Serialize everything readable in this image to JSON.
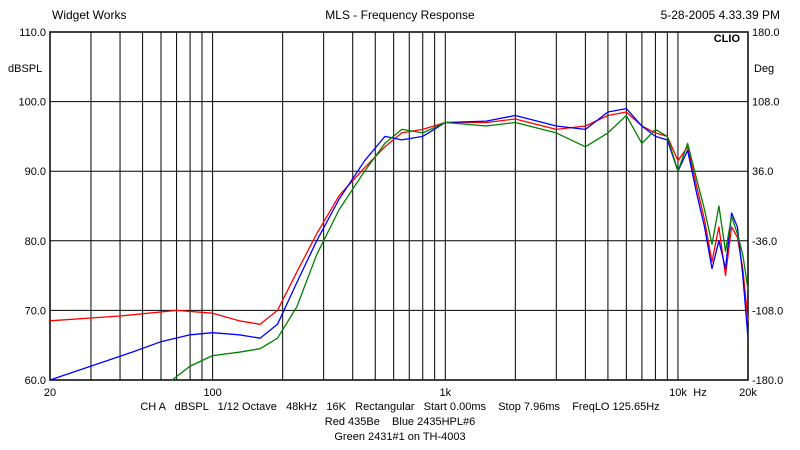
{
  "header": {
    "left": "Widget Works",
    "center": "MLS - Frequency Response",
    "right": "5-28-2005 4.33.39 PM"
  },
  "brand": "CLIO",
  "chart_data": {
    "type": "line",
    "title": "MLS - Frequency Response",
    "x_scale": "log",
    "xlim": [
      20,
      20000
    ],
    "ylim": [
      60,
      110
    ],
    "y2lim": [
      -180,
      180
    ],
    "ylabel": "dBSPL",
    "y2label": "Deg",
    "x_unit_label": "Hz",
    "x_ticks": [
      {
        "value": 20,
        "label": "20"
      },
      {
        "value": 100,
        "label": "100"
      },
      {
        "value": 1000,
        "label": "1k"
      },
      {
        "value": 10000,
        "label": "10k"
      },
      {
        "value": 20000,
        "label": "20k"
      }
    ],
    "y_ticks": [
      {
        "value": 60,
        "label": "60.0"
      },
      {
        "value": 70,
        "label": "70.0"
      },
      {
        "value": 80,
        "label": "80.0"
      },
      {
        "value": 90,
        "label": "90.0"
      },
      {
        "value": 100,
        "label": "100.0"
      },
      {
        "value": 110,
        "label": "110.0"
      }
    ],
    "y2_ticks": [
      {
        "value": -180,
        "label": "-180.0"
      },
      {
        "value": -108,
        "label": "-108.0"
      },
      {
        "value": -36,
        "label": "-36.0"
      },
      {
        "value": 36,
        "label": "36.0"
      },
      {
        "value": 108,
        "label": "108.0"
      },
      {
        "value": 180,
        "label": "180.0"
      }
    ],
    "series": [
      {
        "name": "Red 435Be",
        "color": "#ff0000",
        "x": [
          20,
          40,
          70,
          100,
          130,
          160,
          190,
          230,
          280,
          350,
          450,
          550,
          650,
          800,
          1000,
          1500,
          2000,
          3000,
          4000,
          5000,
          6000,
          7000,
          8000,
          9000,
          10000,
          11000,
          12000,
          13000,
          14000,
          15000,
          16000,
          17000,
          18000,
          19000,
          20000
        ],
        "y": [
          68.5,
          69.2,
          70.0,
          69.6,
          68.5,
          68.0,
          70.0,
          75.5,
          81.0,
          86.5,
          90.5,
          93.5,
          95.5,
          96.0,
          97.0,
          97.0,
          97.5,
          96.0,
          96.5,
          98.0,
          98.5,
          96.5,
          95.5,
          95.0,
          91.5,
          93.5,
          88.0,
          83.0,
          77.0,
          82.0,
          75.0,
          82.0,
          80.5,
          76.0,
          68.5
        ]
      },
      {
        "name": "Blue 2435HPL#6",
        "color": "#0000ff",
        "x": [
          20,
          30,
          45,
          60,
          80,
          100,
          130,
          160,
          190,
          230,
          280,
          350,
          450,
          550,
          650,
          800,
          1000,
          1500,
          2000,
          3000,
          4000,
          5000,
          6000,
          7000,
          8000,
          9000,
          10000,
          11000,
          12000,
          13000,
          14000,
          15000,
          16000,
          17000,
          18000,
          19000,
          20000
        ],
        "y": [
          60.0,
          62.0,
          64.0,
          65.5,
          66.5,
          66.8,
          66.5,
          66.0,
          68.0,
          74.0,
          80.0,
          86.0,
          91.5,
          95.0,
          94.5,
          95.0,
          97.0,
          97.2,
          98.0,
          96.5,
          96.0,
          98.5,
          99.0,
          96.5,
          95.0,
          94.5,
          90.0,
          93.0,
          87.0,
          82.0,
          76.0,
          80.0,
          76.0,
          84.0,
          82.0,
          75.0,
          66.0
        ]
      },
      {
        "name": "Green 2431#1 on TH-4003",
        "color": "#008000",
        "x": [
          67,
          80,
          100,
          130,
          160,
          190,
          230,
          280,
          350,
          450,
          550,
          650,
          800,
          1000,
          1500,
          2000,
          3000,
          4000,
          5000,
          6000,
          7000,
          8000,
          9000,
          10000,
          11000,
          12000,
          13000,
          14000,
          15000,
          16000,
          17000,
          18000,
          19000,
          20000
        ],
        "y": [
          60.0,
          62.0,
          63.5,
          64.0,
          64.5,
          66.0,
          70.5,
          78.0,
          84.5,
          90.0,
          94.0,
          96.0,
          95.5,
          97.0,
          96.5,
          97.0,
          95.5,
          93.5,
          95.5,
          98.0,
          94.0,
          96.0,
          95.0,
          90.0,
          94.0,
          89.0,
          84.5,
          79.5,
          85.0,
          78.5,
          83.5,
          81.0,
          78.0,
          73.0
        ]
      }
    ]
  },
  "footer": {
    "line1": "CH A   dBSPL   1/12 Octave   48kHz   16K   Rectangular   Start 0.00ms    Stop 7.96ms    FreqLO 125.65Hz",
    "line2": "Red 435Be    Blue 2435HPL#6",
    "line3": "Green 2431#1 on TH-4003"
  }
}
